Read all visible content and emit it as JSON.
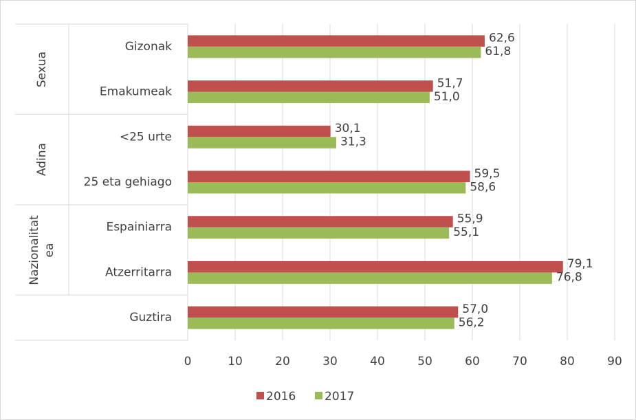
{
  "chart_data": {
    "type": "hbar",
    "categories": [
      "Gizonak",
      "Emakumeak",
      "<25 urte",
      "25 eta gehiago",
      "Espainiarra",
      "Atzerritarra",
      "Guztira"
    ],
    "groups": [
      {
        "label": "Sexua",
        "size": 2
      },
      {
        "label": "Adina",
        "size": 2
      },
      {
        "label": "Nazionalitatea",
        "size": 2
      }
    ],
    "series": [
      {
        "name": "2016",
        "color": "#c0504d",
        "values": [
          62.6,
          51.7,
          30.1,
          59.5,
          55.9,
          79.1,
          57.0
        ],
        "value_labels": [
          "62,6",
          "51,7",
          "30,1",
          "59,5",
          "55,9",
          "79,1",
          "57,0"
        ]
      },
      {
        "name": "2017",
        "color": "#9bbb59",
        "values": [
          61.8,
          51.0,
          31.3,
          58.6,
          55.1,
          76.8,
          56.2
        ],
        "value_labels": [
          "61,8",
          "51,0",
          "31,3",
          "58,6",
          "55,1",
          "76,8",
          "56,2"
        ]
      }
    ],
    "xlim": [
      0,
      90
    ],
    "xticks": [
      0,
      10,
      20,
      30,
      40,
      50,
      60,
      70,
      80,
      90
    ],
    "grid": true,
    "legend": "bottom"
  }
}
